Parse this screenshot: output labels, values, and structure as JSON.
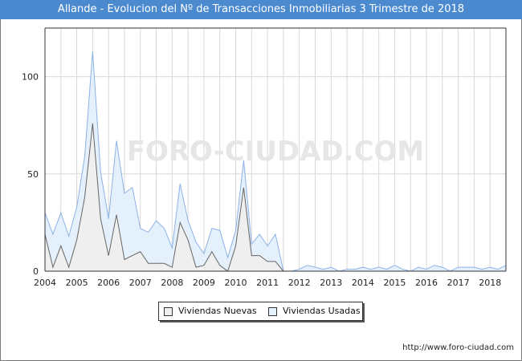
{
  "title": "Allande - Evolucion del Nº de Transacciones Inmobiliarias 3 Trimestre de 2018",
  "watermark": "FORO-CIUDAD.COM",
  "url": "http://www.foro-ciudad.com",
  "colors": {
    "title_bg": "#4c8ad0",
    "nuevas_line": "#666666",
    "nuevas_fill": "#efefef",
    "usadas_line": "#8fb2e6",
    "usadas_fill": "#e4f0fb",
    "grid": "#d8d8d8"
  },
  "chart_data": {
    "type": "area",
    "title": "Allande - Evolucion del Nº de Transacciones Inmobiliarias 3 Trimestre de 2018",
    "xlabel": "",
    "ylabel": "",
    "xlim": [
      2004,
      2018.5
    ],
    "ylim": [
      0,
      125
    ],
    "yticks": [
      0,
      50,
      100
    ],
    "xticks": [
      "2004",
      "2005",
      "2006",
      "2007",
      "2008",
      "2009",
      "2010",
      "2011",
      "2012",
      "2013",
      "2014",
      "2015",
      "2016",
      "2017",
      "2018"
    ],
    "grid": true,
    "legend_position": "bottom-center",
    "x_start": "2004 Q1",
    "series": [
      {
        "name": "Viviendas Nuevas",
        "values": [
          19,
          2,
          13,
          2,
          16,
          38,
          76,
          27,
          8,
          29,
          6,
          8,
          10,
          4,
          4,
          4,
          2,
          25,
          16,
          2,
          3,
          10,
          3,
          0,
          13,
          43,
          8,
          8,
          5,
          5,
          0,
          0,
          0,
          0,
          0,
          0,
          0,
          0,
          0,
          0,
          0,
          0,
          0,
          0,
          0,
          0,
          0,
          0,
          0,
          0,
          0,
          0,
          0,
          0,
          0,
          0,
          0,
          0,
          0
        ]
      },
      {
        "name": "Viviendas Usadas",
        "values": [
          30,
          19,
          30,
          18,
          33,
          59,
          113,
          51,
          27,
          67,
          40,
          43,
          22,
          20,
          26,
          22,
          12,
          45,
          26,
          15,
          9,
          22,
          21,
          7,
          21,
          57,
          14,
          19,
          13,
          19,
          0,
          0,
          1,
          3,
          2,
          1,
          2,
          0,
          1,
          1,
          2,
          1,
          2,
          1,
          3,
          1,
          0,
          2,
          1,
          3,
          2,
          0,
          2,
          2,
          2,
          1,
          2,
          1,
          3
        ]
      }
    ]
  }
}
